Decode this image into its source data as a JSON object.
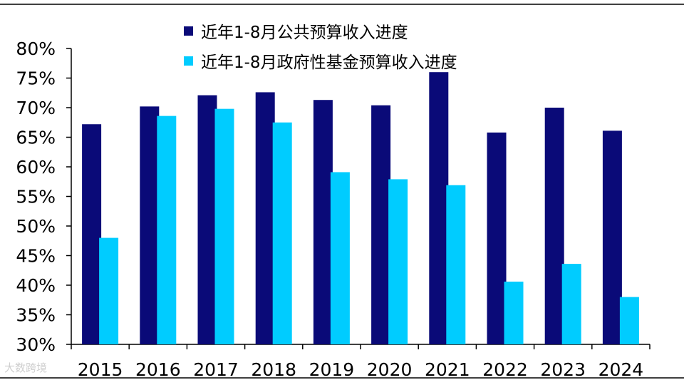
{
  "chart_data": {
    "type": "bar",
    "categories": [
      "2015",
      "2016",
      "2017",
      "2018",
      "2019",
      "2020",
      "2021",
      "2022",
      "2023",
      "2024"
    ],
    "series": [
      {
        "name": "近年1-8月公共预算收入进度",
        "color": "#0a0a78",
        "values": [
          67.2,
          70.2,
          72.1,
          72.6,
          71.3,
          70.4,
          76.0,
          65.8,
          70.0,
          66.1
        ]
      },
      {
        "name": "近年1-8月政府性基金预算收入进度",
        "color": "#00ccff",
        "values": [
          48.0,
          68.6,
          69.8,
          67.5,
          59.1,
          57.9,
          56.9,
          40.6,
          43.6,
          38.0
        ]
      }
    ],
    "yticks": [
      "30%",
      "35%",
      "40%",
      "45%",
      "50%",
      "55%",
      "60%",
      "65%",
      "70%",
      "75%",
      "80%"
    ],
    "ylim": [
      30,
      80
    ],
    "legend_position": "top",
    "grid": false
  },
  "watermark": "大数跨境"
}
